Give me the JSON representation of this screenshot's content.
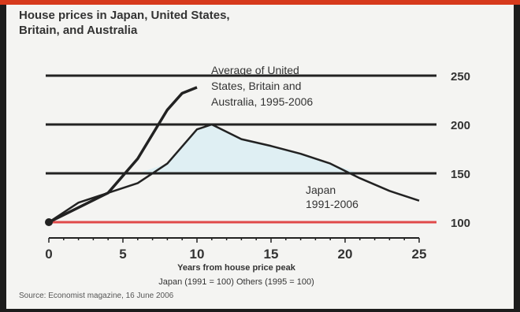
{
  "chart_data": {
    "type": "line",
    "title": "House prices in Japan, United States, Britain, and Australia",
    "xlabel": "Years from house price peak",
    "x_note": "Japan (1991 = 100) Others (1995 = 100)",
    "x_ticks": [
      0,
      5,
      10,
      15,
      20,
      25
    ],
    "y_ticks": [
      100,
      150,
      200,
      250
    ],
    "xlim": [
      0,
      25
    ],
    "ylim": [
      100,
      250
    ],
    "grid": "horizontal lines at 150, 200, 250; red baseline at 100",
    "series": [
      {
        "name": "Average of United States, Britain and Australia, 1995-2006",
        "x": [
          0,
          2,
          4,
          6,
          7,
          8,
          9,
          10
        ],
        "y": [
          100,
          115,
          130,
          165,
          190,
          215,
          232,
          238
        ]
      },
      {
        "name": "Japan, 1991-2006",
        "x": [
          0,
          2,
          4,
          6,
          8,
          10,
          11,
          13,
          15,
          17,
          19,
          21,
          23,
          25
        ],
        "y": [
          100,
          120,
          130,
          140,
          160,
          195,
          200,
          185,
          178,
          170,
          160,
          145,
          132,
          122
        ]
      }
    ],
    "annotations": [
      "Average of United States, Britain and Australia, 1995-2006",
      "Japan, 1991-2006"
    ],
    "source": "Source: Economist magazine, 16 June 2006"
  },
  "colors": {
    "background": "#f4f4f2",
    "line": "#222222",
    "baseline": "#e04a4a",
    "shade": "#d6ecf3"
  }
}
